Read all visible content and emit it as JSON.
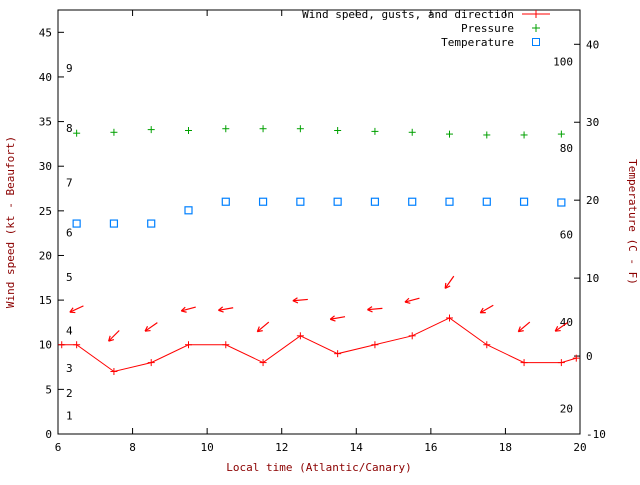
{
  "colors": {
    "wind": "#ff0000",
    "pressure": "#00a000",
    "temperature": "#0080ff",
    "axis_label": "#8b0000",
    "axis_line": "#000000"
  },
  "chart_data": {
    "type": "line",
    "title": "",
    "legend": {
      "position": "top-right",
      "entries": [
        "Wind speed, gusts, and direction",
        "Pressure",
        "Temperature"
      ]
    },
    "x_axis": {
      "label": "Local time (Atlantic/Canary)",
      "range": [
        6,
        20
      ],
      "ticks": [
        6,
        8,
        10,
        12,
        14,
        16,
        18,
        20
      ]
    },
    "y_left": {
      "label": "Wind speed (kt - Beaufort)",
      "range": [
        0,
        47.5
      ],
      "ticks": [
        0,
        5,
        10,
        15,
        20,
        25,
        30,
        35,
        40,
        45
      ],
      "beaufort_scale_labels": [
        {
          "label": "1",
          "at": 2.1
        },
        {
          "label": "2",
          "at": 4.6
        },
        {
          "label": "3",
          "at": 7.4
        },
        {
          "label": "4",
          "at": 11.6
        },
        {
          "label": "5",
          "at": 17.6
        },
        {
          "label": "6",
          "at": 22.6
        },
        {
          "label": "7",
          "at": 28.2
        },
        {
          "label": "8",
          "at": 34.3
        },
        {
          "label": "9",
          "at": 41.0
        }
      ]
    },
    "y_right": {
      "label": "Temperature (C - F)",
      "range_C": [
        -10,
        44.4
      ],
      "ticks_C": [
        -10,
        0,
        10,
        20,
        30,
        40
      ],
      "fahrenheit_labels": [
        {
          "label": "20",
          "C": -6.7
        },
        {
          "label": "40",
          "C": 4.4
        },
        {
          "label": "60",
          "C": 15.6
        },
        {
          "label": "80",
          "C": 26.7
        },
        {
          "label": "100",
          "C": 37.8
        }
      ]
    },
    "series": [
      {
        "name": "Wind speed",
        "color": "#ff0000",
        "style": "line-with-plus-markers",
        "axis": "left",
        "x": [
          6.1,
          6.5,
          7.5,
          8.5,
          9.5,
          10.5,
          11.5,
          12.5,
          13.5,
          14.5,
          15.5,
          16.5,
          17.5,
          18.5,
          19.5,
          19.9
        ],
        "y": [
          10,
          10,
          7,
          8,
          10,
          10,
          8,
          11,
          9,
          10,
          11,
          13,
          10,
          8,
          8,
          8.5
        ]
      },
      {
        "name": "Wind gusts and direction",
        "color": "#ff0000",
        "style": "direction-arrows",
        "axis": "left",
        "x": [
          6.5,
          7.5,
          8.5,
          9.5,
          10.5,
          11.5,
          12.5,
          13.5,
          14.5,
          15.5,
          16.5,
          17.5,
          18.5,
          19.5
        ],
        "gust": [
          14,
          11,
          12,
          14,
          14,
          12,
          15,
          13,
          14,
          15,
          17,
          14,
          12,
          12
        ],
        "arrow_angle_deg": [
          205,
          225,
          215,
          195,
          190,
          220,
          185,
          190,
          185,
          195,
          235,
          210,
          220,
          215
        ]
      },
      {
        "name": "Pressure",
        "color": "#00a000",
        "style": "plus-markers",
        "axis": "left-units-no-scale-shown",
        "x": [
          6.5,
          7.5,
          8.5,
          9.5,
          10.5,
          11.5,
          12.5,
          13.5,
          14.5,
          15.5,
          16.5,
          17.5,
          18.5,
          19.5
        ],
        "y": [
          33.7,
          33.8,
          34.1,
          34.0,
          34.2,
          34.2,
          34.2,
          34.0,
          33.9,
          33.8,
          33.6,
          33.5,
          33.5,
          33.6
        ]
      },
      {
        "name": "Temperature",
        "color": "#0080ff",
        "style": "open-square-markers",
        "axis": "right",
        "x": [
          6.5,
          7.5,
          8.5,
          9.5,
          10.5,
          11.5,
          12.5,
          13.5,
          14.5,
          15.5,
          16.5,
          17.5,
          18.5,
          19.5
        ],
        "y_C": [
          17,
          17,
          17,
          18.7,
          19.8,
          19.8,
          19.8,
          19.8,
          19.8,
          19.8,
          19.8,
          19.8,
          19.8,
          19.7
        ]
      }
    ]
  }
}
